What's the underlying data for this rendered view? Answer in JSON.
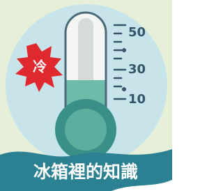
{
  "badge": "冷",
  "scale": {
    "labels": [
      "50",
      "30",
      "10"
    ]
  },
  "caption": "冰箱裡的知識"
}
